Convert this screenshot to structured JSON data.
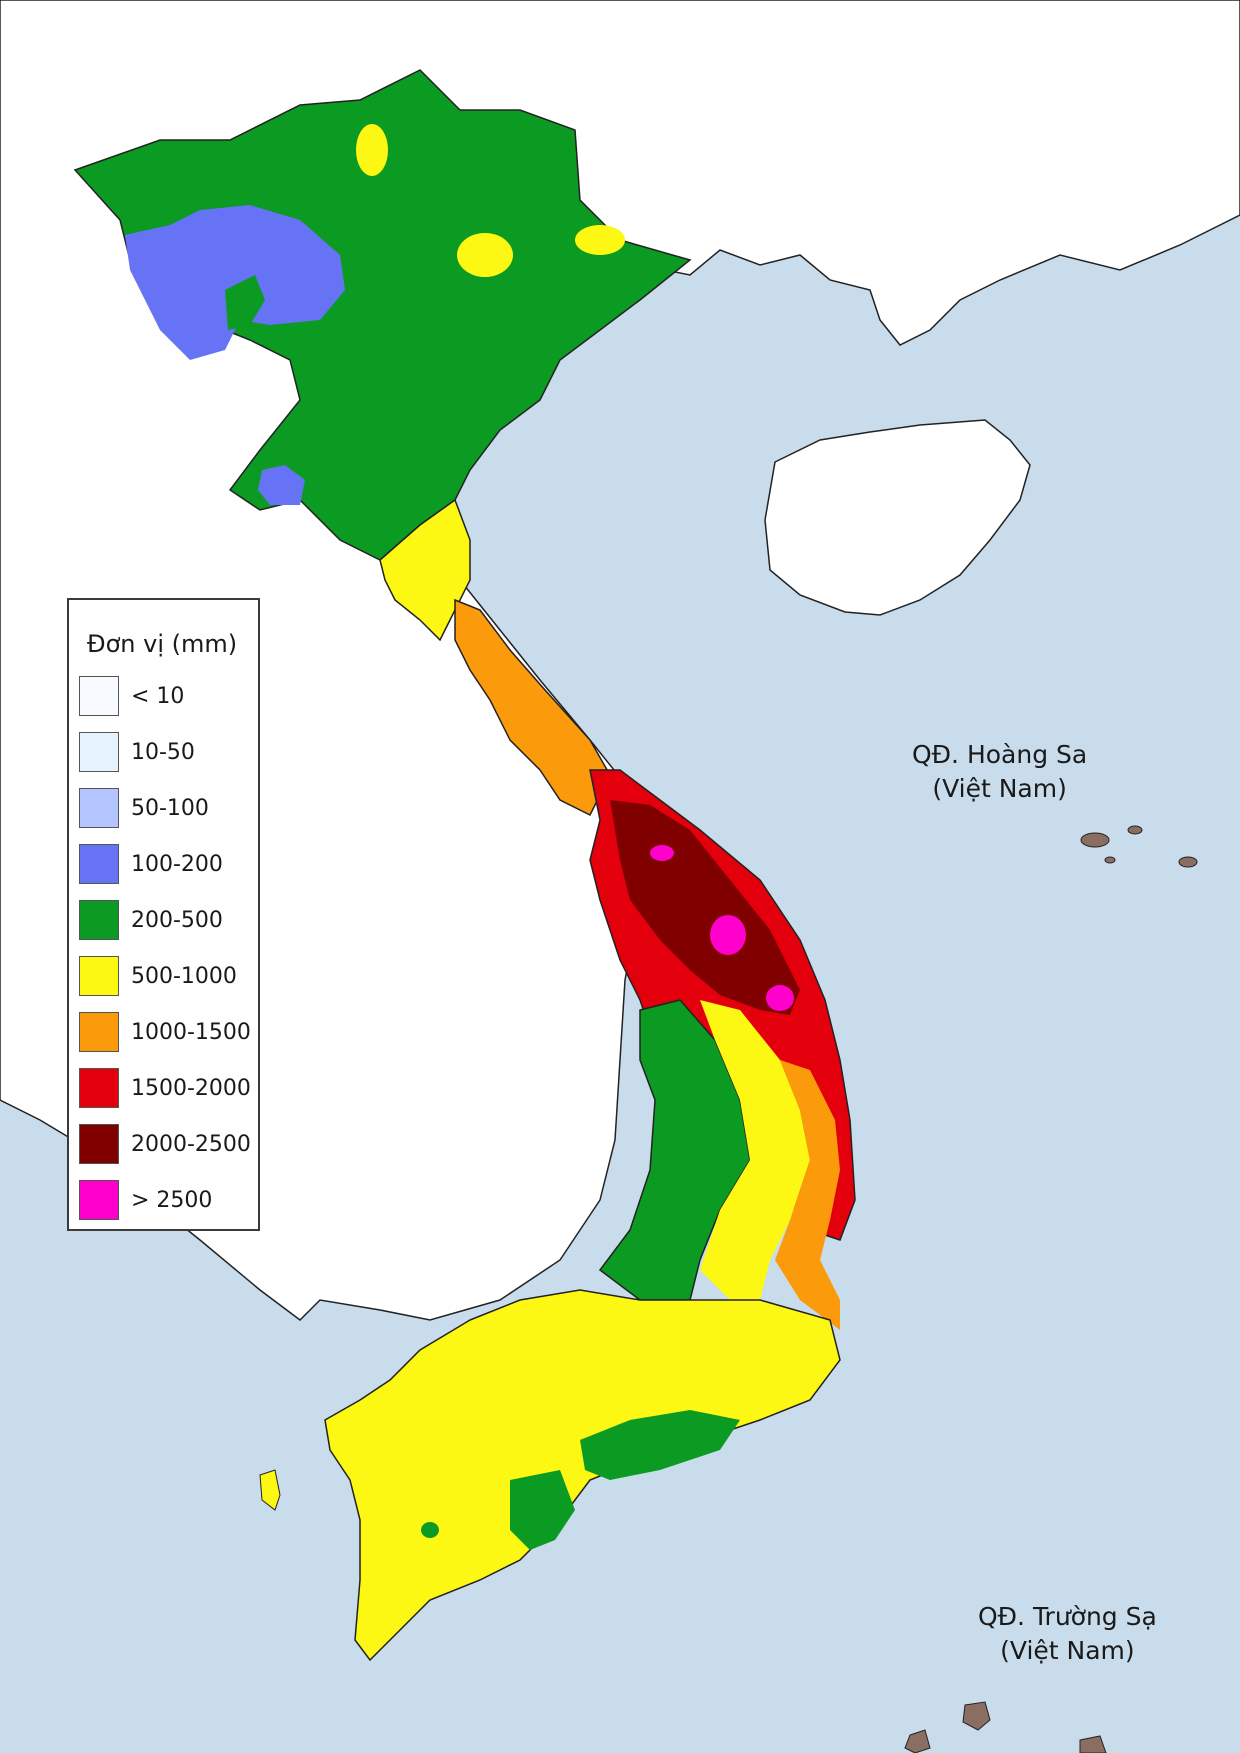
{
  "legend": {
    "title": "Đơn vị (mm)",
    "items": [
      {
        "label": "< 10",
        "color": "#f7fbff"
      },
      {
        "label": "10-50",
        "color": "#e6f3fc"
      },
      {
        "label": "50-100",
        "color": "#b3c6ff"
      },
      {
        "label": "100-200",
        "color": "#6673f5"
      },
      {
        "label": "200-500",
        "color": "#0b9a22"
      },
      {
        "label": "500-1000",
        "color": "#fcf713"
      },
      {
        "label": "1000-1500",
        "color": "#fb9b0b"
      },
      {
        "label": "1500-2000",
        "color": "#e3000c"
      },
      {
        "label": "2000-2500",
        "color": "#800000"
      },
      {
        "label": "> 2500",
        "color": "#ff00cc"
      }
    ]
  },
  "islands": {
    "hoang_sa": {
      "line1": "QĐ. Hoàng Sa",
      "line2": "(Việt Nam)"
    },
    "truong_sa": {
      "line1": "QĐ. Trường Sạ",
      "line2": "(Việt Nam)"
    }
  },
  "colors": {
    "sea": "#c9dcec",
    "land": "#ffffff",
    "border": "#222222",
    "island_fill": "#8a6e62"
  }
}
